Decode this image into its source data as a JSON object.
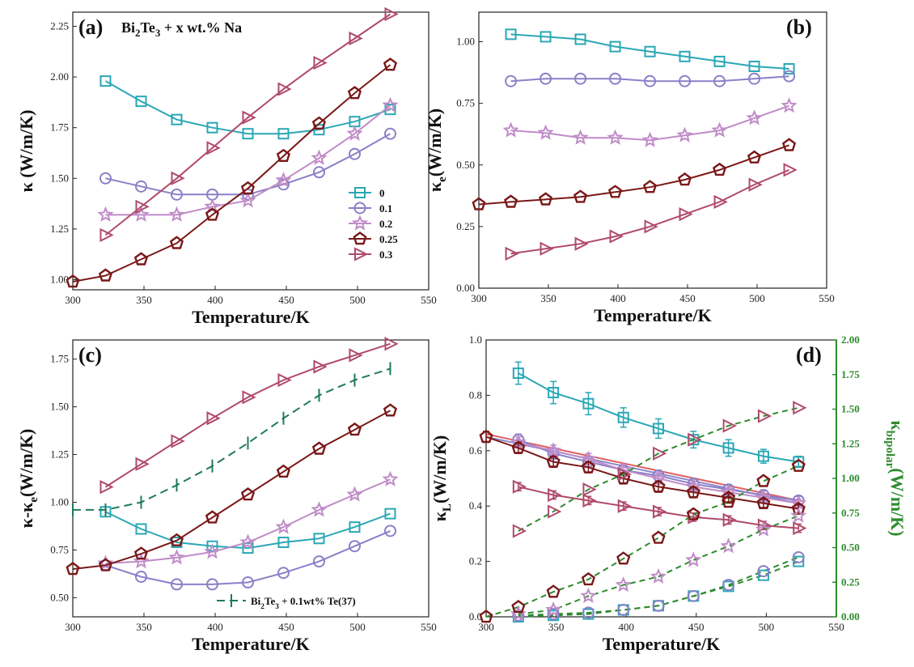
{
  "chart_data": [
    {
      "panel_label": "(a)",
      "type": "line",
      "annotation": {
        "base": "Bi",
        "sub1": "2",
        "mid": "Te",
        "sub2": "3",
        "rest": " + x wt.% Na"
      },
      "xlabel": "Temperature/K",
      "ylabel": {
        "main": "κ (W/m/K)"
      },
      "xlim": [
        300,
        550
      ],
      "ylim": [
        0.95,
        2.32
      ],
      "xticks": [
        "300",
        "350",
        "400",
        "450",
        "500",
        "550"
      ],
      "yticks": [
        "1.00",
        "1.25",
        "1.50",
        "1.75",
        "2.00",
        "2.25"
      ],
      "legend": {
        "position": "center-right",
        "entries": [
          "0",
          "0.1",
          "0.2",
          "0.25",
          "0.3"
        ]
      },
      "series": [
        {
          "name": "0",
          "x": [
            323,
            348,
            373,
            398,
            423,
            448,
            473,
            498,
            523
          ],
          "y": [
            1.98,
            1.88,
            1.79,
            1.75,
            1.72,
            1.72,
            1.74,
            1.78,
            1.84
          ]
        },
        {
          "name": "0.1",
          "x": [
            323,
            348,
            373,
            398,
            423,
            448,
            473,
            498,
            523
          ],
          "y": [
            1.5,
            1.46,
            1.42,
            1.42,
            1.42,
            1.47,
            1.53,
            1.62,
            1.72
          ]
        },
        {
          "name": "0.2",
          "x": [
            323,
            348,
            373,
            398,
            423,
            448,
            473,
            498,
            523
          ],
          "y": [
            1.32,
            1.32,
            1.32,
            1.36,
            1.39,
            1.49,
            1.6,
            1.72,
            1.86
          ]
        },
        {
          "name": "0.25",
          "x": [
            300,
            323,
            348,
            373,
            398,
            423,
            448,
            473,
            498,
            523
          ],
          "y": [
            0.99,
            1.02,
            1.1,
            1.18,
            1.32,
            1.45,
            1.61,
            1.77,
            1.92,
            2.06
          ]
        },
        {
          "name": "0.3",
          "x": [
            323,
            348,
            373,
            398,
            423,
            448,
            473,
            498,
            523
          ],
          "y": [
            1.22,
            1.36,
            1.5,
            1.65,
            1.8,
            1.94,
            2.07,
            2.19,
            2.31
          ]
        }
      ]
    },
    {
      "panel_label": "(b)",
      "type": "line",
      "xlabel": "Temperature/K",
      "ylabel": {
        "main": "κ",
        "sub": "e",
        "rest": "(W/m/K)"
      },
      "xlim": [
        300,
        550
      ],
      "ylim": [
        0,
        1.12
      ],
      "xticks": [
        "300",
        "350",
        "400",
        "450",
        "500",
        "550"
      ],
      "yticks": [
        "0.00",
        "0.25",
        "0.50",
        "0.75",
        "1.00"
      ],
      "series": [
        {
          "name": "0",
          "x": [
            323,
            348,
            373,
            398,
            423,
            448,
            473,
            498,
            523
          ],
          "y": [
            1.03,
            1.02,
            1.01,
            0.98,
            0.96,
            0.94,
            0.92,
            0.9,
            0.89
          ]
        },
        {
          "name": "0.1",
          "x": [
            323,
            348,
            373,
            398,
            423,
            448,
            473,
            498,
            523
          ],
          "y": [
            0.84,
            0.85,
            0.85,
            0.85,
            0.84,
            0.84,
            0.84,
            0.85,
            0.86
          ]
        },
        {
          "name": "0.2",
          "x": [
            323,
            348,
            373,
            398,
            423,
            448,
            473,
            498,
            523
          ],
          "y": [
            0.64,
            0.63,
            0.61,
            0.61,
            0.6,
            0.62,
            0.64,
            0.69,
            0.74
          ]
        },
        {
          "name": "0.25",
          "x": [
            300,
            323,
            348,
            373,
            398,
            423,
            448,
            473,
            498,
            523
          ],
          "y": [
            0.34,
            0.35,
            0.36,
            0.37,
            0.39,
            0.41,
            0.44,
            0.48,
            0.53,
            0.58
          ]
        },
        {
          "name": "0.3",
          "x": [
            323,
            348,
            373,
            398,
            423,
            448,
            473,
            498,
            523
          ],
          "y": [
            0.14,
            0.16,
            0.18,
            0.21,
            0.25,
            0.3,
            0.35,
            0.42,
            0.48
          ]
        }
      ]
    },
    {
      "panel_label": "(c)",
      "type": "line",
      "xlabel": "Temperature/K",
      "ylabel": {
        "main": "κ-κ",
        "sub": "e",
        "rest": "(W/m/K)"
      },
      "xlim": [
        300,
        550
      ],
      "ylim": [
        0.4,
        1.85
      ],
      "xticks": [
        "300",
        "350",
        "400",
        "450",
        "500",
        "550"
      ],
      "yticks": [
        "0.50",
        "0.75",
        "1.00",
        "1.25",
        "1.50",
        "1.75"
      ],
      "legend": {
        "position": "bottom-right",
        "entries": [
          {
            "base": "Bi",
            "sub1": "2",
            "mid": "Te",
            "sub2": "3",
            "rest": " + 0.1wt% Te(37)"
          }
        ]
      },
      "series": [
        {
          "name": "0",
          "x": [
            323,
            348,
            373,
            398,
            423,
            448,
            473,
            498,
            523
          ],
          "y": [
            0.95,
            0.86,
            0.79,
            0.77,
            0.76,
            0.79,
            0.81,
            0.87,
            0.94
          ]
        },
        {
          "name": "0.1",
          "x": [
            323,
            348,
            373,
            398,
            423,
            448,
            473,
            498,
            523
          ],
          "y": [
            0.67,
            0.61,
            0.57,
            0.57,
            0.58,
            0.63,
            0.69,
            0.77,
            0.85
          ]
        },
        {
          "name": "0.2",
          "x": [
            323,
            348,
            373,
            398,
            423,
            448,
            473,
            498,
            523
          ],
          "y": [
            0.68,
            0.69,
            0.71,
            0.74,
            0.79,
            0.87,
            0.96,
            1.04,
            1.12
          ]
        },
        {
          "name": "0.25",
          "x": [
            300,
            323,
            348,
            373,
            398,
            423,
            448,
            473,
            498,
            523
          ],
          "y": [
            0.65,
            0.67,
            0.73,
            0.8,
            0.92,
            1.04,
            1.16,
            1.28,
            1.38,
            1.48
          ]
        },
        {
          "name": "0.3",
          "x": [
            323,
            348,
            373,
            398,
            423,
            448,
            473,
            498,
            523
          ],
          "y": [
            1.08,
            1.2,
            1.32,
            1.44,
            1.55,
            1.64,
            1.71,
            1.77,
            1.83
          ]
        },
        {
          "name": "Bi2Te3 + 0.1wt% Te(37)",
          "x": [
            300,
            323,
            348,
            373,
            398,
            423,
            448,
            473,
            498,
            523
          ],
          "y": [
            0.96,
            0.96,
            1.0,
            1.09,
            1.19,
            1.31,
            1.44,
            1.56,
            1.64,
            1.7
          ]
        }
      ]
    },
    {
      "panel_label": "(d)",
      "type": "line",
      "xlabel": "Temperature/K",
      "ylabel": {
        "main": "κ",
        "sub": "L",
        "rest": "(W/m/K)"
      },
      "y2label": {
        "main": "κ",
        "sub": "bipolar",
        "rest": "(W/m/K)"
      },
      "xlim": [
        300,
        550
      ],
      "ylim": [
        0,
        1.0
      ],
      "y2lim": [
        0,
        2.0
      ],
      "xticks": [
        "300",
        "350",
        "400",
        "450",
        "500",
        "550"
      ],
      "yticks": [
        "0.0",
        "0.2",
        "0.4",
        "0.6",
        "0.8",
        "1.0"
      ],
      "y2ticks": [
        "0.00",
        "0.25",
        "0.50",
        "0.75",
        "1.00",
        "1.25",
        "1.50",
        "1.75",
        "2.00"
      ],
      "fit_lines": [
        {
          "color": "#e06060",
          "x": [
            300,
            523
          ],
          "y": [
            0.66,
            0.42
          ]
        },
        {
          "color": "#8888cc",
          "x": [
            300,
            523
          ],
          "y": [
            0.65,
            0.41
          ]
        }
      ],
      "series_L": [
        {
          "name": "0",
          "x": [
            323,
            348,
            373,
            398,
            423,
            448,
            473,
            498,
            523
          ],
          "y": [
            0.88,
            0.81,
            0.77,
            0.72,
            0.68,
            0.64,
            0.61,
            0.58,
            0.56
          ],
          "err": [
            0.04,
            0.04,
            0.04,
            0.035,
            0.035,
            0.03,
            0.03,
            0.025,
            0.02
          ]
        },
        {
          "name": "0.1",
          "x": [
            323,
            348,
            373,
            398,
            423,
            448,
            473,
            498,
            523
          ],
          "y": [
            0.64,
            0.59,
            0.56,
            0.53,
            0.51,
            0.48,
            0.46,
            0.44,
            0.42
          ],
          "err": [
            0.02,
            0.02,
            0.02,
            0.02,
            0.02,
            0.02,
            0.015,
            0.015,
            0.015
          ]
        },
        {
          "name": "0.2",
          "x": [
            323,
            348,
            373,
            398,
            423,
            448,
            473,
            498,
            523
          ],
          "y": [
            0.63,
            0.6,
            0.57,
            0.53,
            0.5,
            0.47,
            0.45,
            0.43,
            0.41
          ],
          "err": [
            0.02,
            0.02,
            0.02,
            0.02,
            0.02,
            0.02,
            0.015,
            0.015,
            0.015
          ]
        },
        {
          "name": "0.25",
          "x": [
            300,
            323,
            348,
            373,
            398,
            423,
            448,
            473,
            498,
            523
          ],
          "y": [
            0.65,
            0.61,
            0.56,
            0.54,
            0.5,
            0.47,
            0.45,
            0.43,
            0.41,
            0.39
          ],
          "err": [
            0.02,
            0.02,
            0.02,
            0.02,
            0.02,
            0.02,
            0.02,
            0.015,
            0.015,
            0.015
          ]
        },
        {
          "name": "0.3",
          "x": [
            323,
            348,
            373,
            398,
            423,
            448,
            473,
            498,
            523
          ],
          "y": [
            0.47,
            0.44,
            0.42,
            0.4,
            0.38,
            0.36,
            0.35,
            0.33,
            0.32
          ],
          "err": [
            0.015,
            0.015,
            0.015,
            0.015,
            0.015,
            0.015,
            0.015,
            0.015,
            0.015
          ]
        }
      ],
      "series_bipolar": [
        {
          "name": "0",
          "x": [
            323,
            348,
            373,
            398,
            423,
            448,
            473,
            498,
            523
          ],
          "y": [
            0.0,
            0.01,
            0.02,
            0.05,
            0.08,
            0.15,
            0.22,
            0.3,
            0.4
          ]
        },
        {
          "name": "0.1",
          "x": [
            323,
            348,
            373,
            398,
            423,
            448,
            473,
            498,
            523
          ],
          "y": [
            0.01,
            0.02,
            0.03,
            0.05,
            0.08,
            0.15,
            0.23,
            0.33,
            0.43
          ]
        },
        {
          "name": "0.2",
          "x": [
            323,
            348,
            373,
            398,
            423,
            448,
            473,
            498,
            523
          ],
          "y": [
            0.02,
            0.05,
            0.15,
            0.23,
            0.29,
            0.41,
            0.51,
            0.63,
            0.73
          ]
        },
        {
          "name": "0.25",
          "x": [
            300,
            323,
            348,
            373,
            398,
            423,
            448,
            473,
            498,
            523
          ],
          "y": [
            0.0,
            0.07,
            0.18,
            0.27,
            0.42,
            0.57,
            0.74,
            0.83,
            0.98,
            1.09
          ]
        },
        {
          "name": "0.3",
          "x": [
            323,
            348,
            373,
            398,
            423,
            448,
            473,
            498,
            523
          ],
          "y": [
            0.62,
            0.76,
            0.92,
            1.03,
            1.18,
            1.28,
            1.38,
            1.45,
            1.51
          ]
        }
      ]
    }
  ],
  "colors": {
    "0": "#2aa7b5",
    "0.1": "#8a80c8",
    "0.2": "#c08cc8",
    "0.25": "#7a1818",
    "0.3": "#b04a6a",
    "reference": "#1f7a5a",
    "bipolar_axis": "#2e8b2e"
  },
  "markers": {
    "0": "square",
    "0.1": "circle",
    "0.2": "star",
    "0.25": "pentagon",
    "0.3": "triangle-right"
  }
}
